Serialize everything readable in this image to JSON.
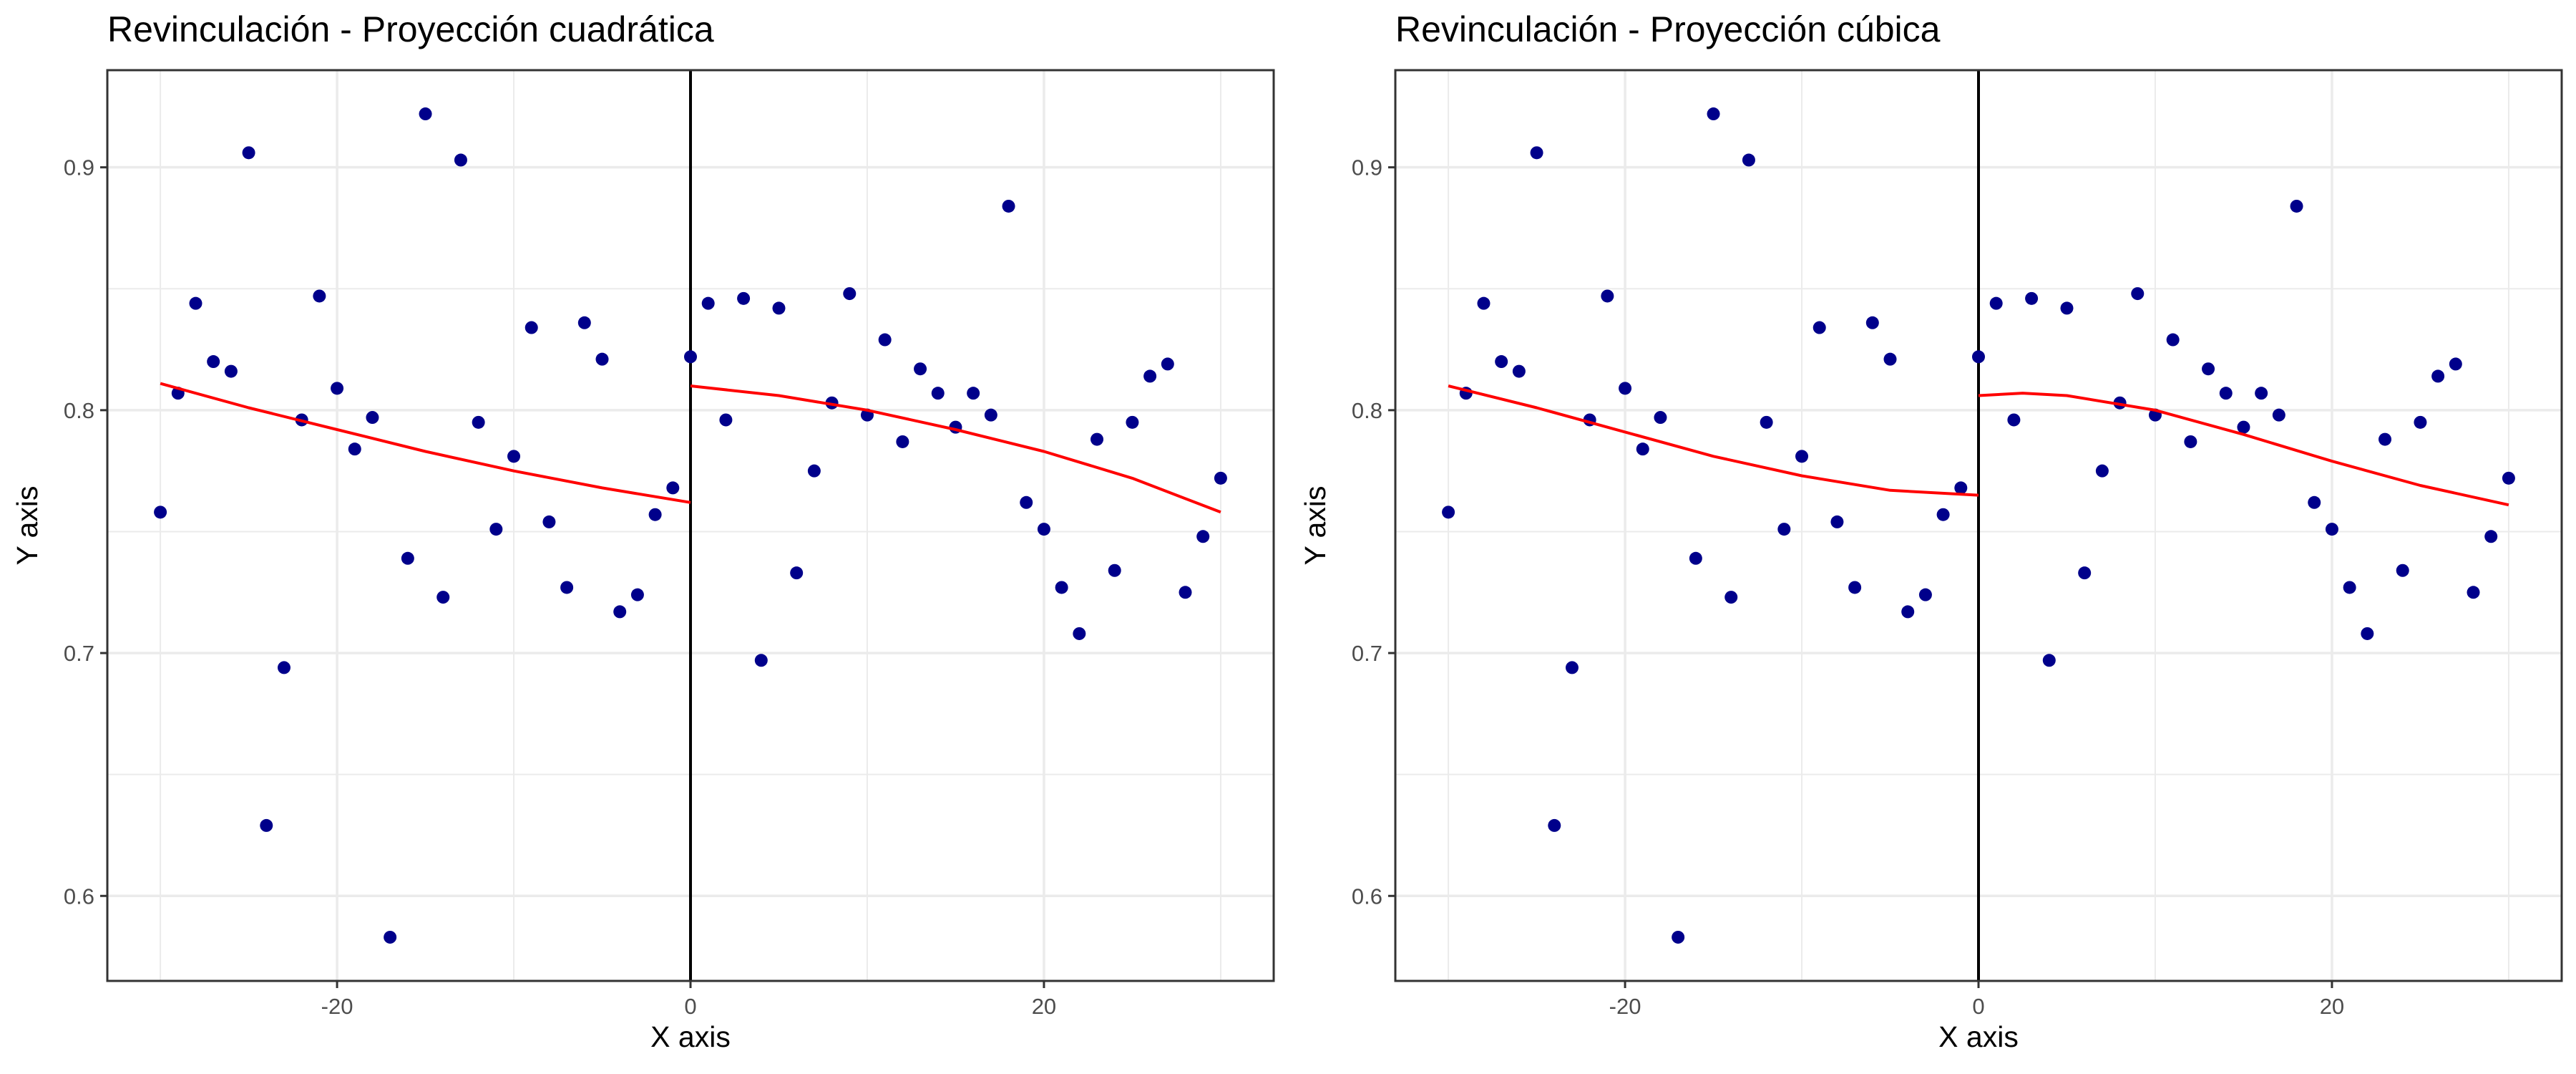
{
  "chart_data": [
    {
      "type": "scatter",
      "title": "Revinculación - Proyección cuadrática",
      "xlabel": "X axis",
      "ylabel": "Y axis",
      "xlim": [
        -33,
        33
      ],
      "ylim": [
        0.565,
        0.94
      ],
      "xticks": [
        -20,
        0,
        20
      ],
      "xtick_labels": [
        "-20",
        "0",
        "20"
      ],
      "yticks": [
        0.6,
        0.7,
        0.8,
        0.9
      ],
      "ytick_labels": [
        "0.6",
        "0.7",
        "0.8",
        "0.9"
      ],
      "grid": true,
      "cutoff_x": 0,
      "colors": {
        "points": "#00008B",
        "fit": "#FF0000",
        "cutoff": "#000000"
      },
      "points": {
        "x": [
          -30,
          -29,
          -28,
          -27,
          -26,
          -25,
          -24,
          -23,
          -22,
          -21,
          -20,
          -19,
          -18,
          -17,
          -16,
          -15,
          -14,
          -13,
          -12,
          -11,
          -10,
          -9,
          -8,
          -7,
          -6,
          -5,
          -4,
          -3,
          -2,
          -1,
          0,
          1,
          2,
          3,
          4,
          5,
          6,
          7,
          8,
          9,
          10,
          11,
          12,
          13,
          14,
          15,
          16,
          17,
          18,
          19,
          20,
          21,
          22,
          23,
          24,
          25,
          26,
          27,
          28,
          29,
          30
        ],
        "y": [
          0.758,
          0.807,
          0.844,
          0.82,
          0.816,
          0.906,
          0.629,
          0.694,
          0.796,
          0.847,
          0.809,
          0.784,
          0.797,
          0.583,
          0.739,
          0.922,
          0.723,
          0.903,
          0.795,
          0.751,
          0.781,
          0.834,
          0.754,
          0.727,
          0.836,
          0.821,
          0.717,
          0.724,
          0.757,
          0.768,
          0.822,
          0.844,
          0.796,
          0.846,
          0.697,
          0.842,
          0.733,
          0.775,
          0.803,
          0.848,
          0.798,
          0.829,
          0.787,
          0.817,
          0.807,
          0.793,
          0.807,
          0.798,
          0.884,
          0.762,
          0.751,
          0.727,
          0.708,
          0.788,
          0.734,
          0.795,
          0.814,
          0.819,
          0.725,
          0.748,
          0.772
        ]
      },
      "fits": [
        {
          "side": "left",
          "x": [
            -30,
            -25,
            -20,
            -15,
            -10,
            -5,
            0
          ],
          "y": [
            0.811,
            0.801,
            0.792,
            0.783,
            0.775,
            0.768,
            0.762
          ]
        },
        {
          "side": "right",
          "x": [
            0,
            5,
            10,
            15,
            20,
            25,
            30
          ],
          "y": [
            0.81,
            0.806,
            0.8,
            0.792,
            0.783,
            0.772,
            0.758
          ]
        }
      ]
    },
    {
      "type": "scatter",
      "title": "Revinculación - Proyección cúbica",
      "xlabel": "X axis",
      "ylabel": "Y axis",
      "xlim": [
        -33,
        33
      ],
      "ylim": [
        0.565,
        0.94
      ],
      "xticks": [
        -20,
        0,
        20
      ],
      "xtick_labels": [
        "-20",
        "0",
        "20"
      ],
      "yticks": [
        0.6,
        0.7,
        0.8,
        0.9
      ],
      "ytick_labels": [
        "0.6",
        "0.7",
        "0.8",
        "0.9"
      ],
      "grid": true,
      "cutoff_x": 0,
      "colors": {
        "points": "#00008B",
        "fit": "#FF0000",
        "cutoff": "#000000"
      },
      "points": {
        "x": [
          -30,
          -29,
          -28,
          -27,
          -26,
          -25,
          -24,
          -23,
          -22,
          -21,
          -20,
          -19,
          -18,
          -17,
          -16,
          -15,
          -14,
          -13,
          -12,
          -11,
          -10,
          -9,
          -8,
          -7,
          -6,
          -5,
          -4,
          -3,
          -2,
          -1,
          0,
          1,
          2,
          3,
          4,
          5,
          6,
          7,
          8,
          9,
          10,
          11,
          12,
          13,
          14,
          15,
          16,
          17,
          18,
          19,
          20,
          21,
          22,
          23,
          24,
          25,
          26,
          27,
          28,
          29,
          30
        ],
        "y": [
          0.758,
          0.807,
          0.844,
          0.82,
          0.816,
          0.906,
          0.629,
          0.694,
          0.796,
          0.847,
          0.809,
          0.784,
          0.797,
          0.583,
          0.739,
          0.922,
          0.723,
          0.903,
          0.795,
          0.751,
          0.781,
          0.834,
          0.754,
          0.727,
          0.836,
          0.821,
          0.717,
          0.724,
          0.757,
          0.768,
          0.822,
          0.844,
          0.796,
          0.846,
          0.697,
          0.842,
          0.733,
          0.775,
          0.803,
          0.848,
          0.798,
          0.829,
          0.787,
          0.817,
          0.807,
          0.793,
          0.807,
          0.798,
          0.884,
          0.762,
          0.751,
          0.727,
          0.708,
          0.788,
          0.734,
          0.795,
          0.814,
          0.819,
          0.725,
          0.748,
          0.772
        ]
      },
      "fits": [
        {
          "side": "left",
          "x": [
            -30,
            -25,
            -20,
            -15,
            -10,
            -5,
            0
          ],
          "y": [
            0.81,
            0.801,
            0.791,
            0.781,
            0.773,
            0.767,
            0.765
          ]
        },
        {
          "side": "right",
          "x": [
            0,
            2.5,
            5,
            10,
            15,
            20,
            25,
            30
          ],
          "y": [
            0.806,
            0.807,
            0.806,
            0.8,
            0.79,
            0.779,
            0.769,
            0.761
          ]
        }
      ]
    }
  ]
}
